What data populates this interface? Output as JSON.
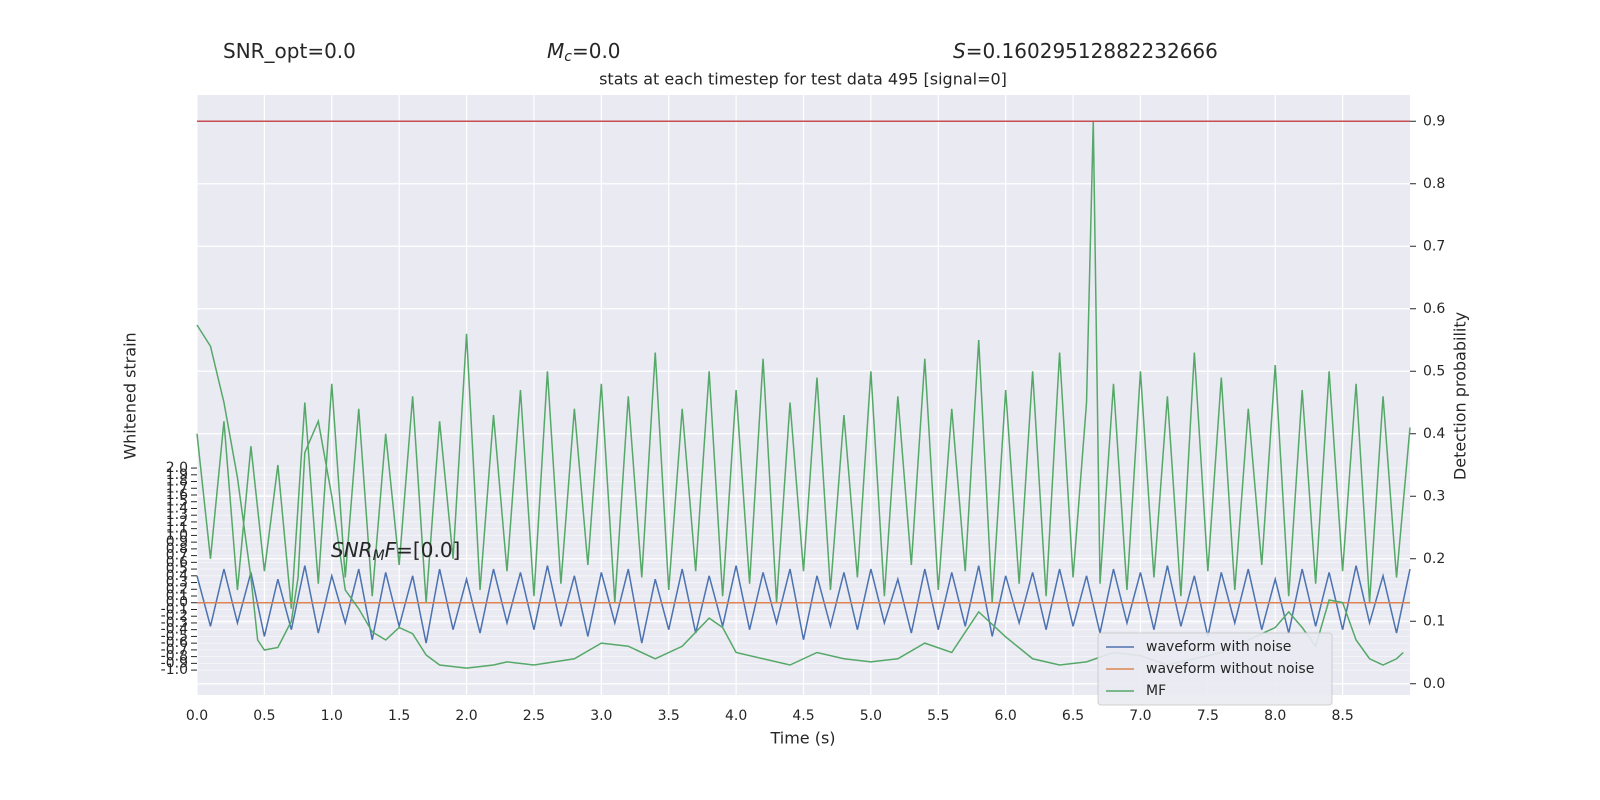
{
  "chart_data": {
    "type": "line",
    "title": "stats at each timestep for test data 495 [signal=0]",
    "annotations": [
      {
        "text": "SNR_opt=0.0"
      },
      {
        "symbol": "M",
        "subscript": "c",
        "text": "=0.0"
      },
      {
        "symbol": "S",
        "text": "=0.16029512882232666"
      },
      {
        "symbol": "SNR",
        "subscript": "M",
        "symbol2": "F",
        "text": "=[0.0]"
      }
    ],
    "x_label": "Time (s)",
    "y_label": "Whitened strain",
    "y2_label": "Detection probability",
    "xlim": [
      0,
      9.0
    ],
    "xticks": [
      {
        "value": 0,
        "label": "0.0"
      },
      0.5,
      {
        "value": 1,
        "label": "1.0"
      },
      1.5,
      {
        "value": 2,
        "label": "2.0"
      },
      2.5,
      {
        "value": 3,
        "label": "3.0"
      },
      3.5,
      {
        "value": 4,
        "label": "4.0"
      },
      4.5,
      {
        "value": 5,
        "label": "5.0"
      },
      5.5,
      {
        "value": 6,
        "label": "6.0"
      },
      6.5,
      {
        "value": 7,
        "label": "7.0"
      },
      7.5,
      {
        "value": 8,
        "label": "8.0"
      },
      8.5
    ],
    "ylim": [
      -1.37,
      7.54
    ],
    "yticks": [
      {
        "value": -1,
        "label": "-1.0"
      },
      -0.9,
      -0.8,
      -0.7,
      -0.6,
      -0.5,
      -0.4,
      -0.3,
      -0.2,
      -0.1,
      {
        "value": 0,
        "label": "0.0"
      },
      0.1,
      0.2,
      0.3,
      0.4,
      0.5,
      0.6,
      0.7,
      0.8,
      0.9,
      {
        "value": 1,
        "label": "1.0"
      },
      1.1,
      1.2,
      1.3,
      1.4,
      1.5,
      1.6,
      1.7,
      1.8,
      1.9,
      {
        "value": 2,
        "label": "2.0"
      }
    ],
    "y2lim": [
      -0.018,
      0.942
    ],
    "y2ticks": [
      {
        "value": 0,
        "label": "0.0"
      },
      0.1,
      0.2,
      0.3,
      0.4,
      0.5,
      0.6,
      0.7,
      0.8,
      0.9
    ],
    "threshold": 0.9,
    "threshold_color": "#c44e52",
    "grid": true,
    "legend": "lower right",
    "series": [
      {
        "color": "#55a868",
        "axis": "y2",
        "x": [
          0,
          0.1,
          0.2,
          0.3,
          0.4,
          0.5,
          0.6,
          0.7,
          0.8,
          0.9,
          1.0,
          1.1,
          1.2,
          1.3,
          1.4,
          1.5,
          1.6,
          1.7,
          1.8,
          1.9,
          2.0,
          2.1,
          2.2,
          2.3,
          2.4,
          2.5,
          2.6,
          2.7,
          2.8,
          2.9,
          3.0,
          3.1,
          3.2,
          3.3,
          3.4,
          3.5,
          3.6,
          3.7,
          3.8,
          3.9,
          4.0,
          4.1,
          4.2,
          4.3,
          4.4,
          4.5,
          4.6,
          4.7,
          4.8,
          4.9,
          5.0,
          5.1,
          5.2,
          5.3,
          5.4,
          5.5,
          5.6,
          5.7,
          5.8,
          5.9,
          6.0,
          6.1,
          6.2,
          6.3,
          6.4,
          6.5,
          6.6,
          6.65,
          6.7,
          6.8,
          6.9,
          7.0,
          7.1,
          7.2,
          7.3,
          7.4,
          7.5,
          7.6,
          7.7,
          7.8,
          7.9,
          8.0,
          8.1,
          8.2,
          8.3,
          8.4,
          8.5,
          8.6,
          8.7,
          8.8,
          8.9,
          9.0
        ],
        "values": [
          0.4,
          0.2,
          0.42,
          0.15,
          0.38,
          0.18,
          0.35,
          0.12,
          0.45,
          0.16,
          0.48,
          0.17,
          0.44,
          0.14,
          0.4,
          0.19,
          0.46,
          0.13,
          0.42,
          0.2,
          0.56,
          0.15,
          0.43,
          0.18,
          0.47,
          0.14,
          0.5,
          0.16,
          0.44,
          0.19,
          0.48,
          0.13,
          0.46,
          0.17,
          0.53,
          0.15,
          0.44,
          0.18,
          0.5,
          0.14,
          0.47,
          0.16,
          0.52,
          0.13,
          0.45,
          0.18,
          0.49,
          0.15,
          0.43,
          0.17,
          0.5,
          0.14,
          0.46,
          0.19,
          0.52,
          0.15,
          0.44,
          0.18,
          0.55,
          0.13,
          0.47,
          0.16,
          0.5,
          0.14,
          0.53,
          0.17,
          0.45,
          0.9,
          0.16,
          0.48,
          0.15,
          0.5,
          0.17,
          0.46,
          0.14,
          0.53,
          0.18,
          0.49,
          0.15,
          0.44,
          0.19,
          0.51,
          0.14,
          0.47,
          0.16,
          0.5,
          0.18,
          0.48,
          0.13,
          0.46,
          0.17,
          0.41
        ]
      },
      {
        "name": "waveform with noise",
        "color": "#4c72b0",
        "axis": "y",
        "x": [
          0,
          0.1,
          0.2,
          0.3,
          0.4,
          0.5,
          0.6,
          0.7,
          0.8,
          0.9,
          1.0,
          1.1,
          1.2,
          1.3,
          1.4,
          1.5,
          1.6,
          1.7,
          1.8,
          1.9,
          2.0,
          2.1,
          2.2,
          2.3,
          2.4,
          2.5,
          2.6,
          2.7,
          2.8,
          2.9,
          3.0,
          3.1,
          3.2,
          3.3,
          3.4,
          3.5,
          3.6,
          3.7,
          3.8,
          3.9,
          4.0,
          4.1,
          4.2,
          4.3,
          4.4,
          4.5,
          4.6,
          4.7,
          4.8,
          4.9,
          5.0,
          5.1,
          5.2,
          5.3,
          5.4,
          5.5,
          5.6,
          5.7,
          5.8,
          5.9,
          6.0,
          6.1,
          6.2,
          6.3,
          6.4,
          6.5,
          6.6,
          6.7,
          6.8,
          6.9,
          7.0,
          7.1,
          7.2,
          7.3,
          7.4,
          7.5,
          7.6,
          7.7,
          7.8,
          7.9,
          8.0,
          8.1,
          8.2,
          8.3,
          8.4,
          8.5,
          8.6,
          8.7,
          8.8,
          8.9,
          9.0
        ],
        "values": [
          0.4,
          -0.35,
          0.5,
          -0.3,
          0.45,
          -0.5,
          0.35,
          -0.4,
          0.55,
          -0.45,
          0.4,
          -0.3,
          0.5,
          -0.55,
          0.45,
          -0.35,
          0.4,
          -0.6,
          0.5,
          -0.4,
          0.35,
          -0.45,
          0.5,
          -0.3,
          0.45,
          -0.4,
          0.55,
          -0.35,
          0.4,
          -0.5,
          0.45,
          -0.3,
          0.5,
          -0.6,
          0.35,
          -0.4,
          0.5,
          -0.45,
          0.4,
          -0.35,
          0.55,
          -0.4,
          0.45,
          -0.3,
          0.5,
          -0.55,
          0.4,
          -0.35,
          0.45,
          -0.4,
          0.5,
          -0.3,
          0.35,
          -0.45,
          0.5,
          -0.4,
          0.45,
          -0.35,
          0.55,
          -0.5,
          0.4,
          -0.3,
          0.45,
          -0.4,
          0.5,
          -0.35,
          0.4,
          -0.45,
          0.5,
          -0.3,
          0.45,
          -0.4,
          0.55,
          -0.35,
          0.4,
          -0.5,
          0.45,
          -0.3,
          0.5,
          -0.4,
          0.35,
          -0.45,
          0.5,
          -0.35,
          0.45,
          -0.4,
          0.55,
          -0.3,
          0.4,
          -0.45,
          0.5
        ]
      },
      {
        "name": "waveform without noise",
        "color": "#dd8452",
        "axis": "y",
        "x": [
          0,
          9.0
        ],
        "values": [
          0,
          0
        ]
      },
      {
        "name": "MF",
        "color": "#55a868",
        "axis": "y2",
        "x": [
          0,
          0.1,
          0.2,
          0.3,
          0.4,
          0.45,
          0.5,
          0.6,
          0.7,
          0.75,
          0.8,
          0.9,
          1.0,
          1.1,
          1.2,
          1.3,
          1.4,
          1.5,
          1.6,
          1.7,
          1.8,
          2.0,
          2.2,
          2.3,
          2.5,
          2.8,
          3.0,
          3.2,
          3.4,
          3.6,
          3.8,
          3.9,
          4.0,
          4.2,
          4.4,
          4.6,
          4.8,
          5.0,
          5.2,
          5.4,
          5.6,
          5.8,
          6.0,
          6.2,
          6.4,
          6.6,
          6.8,
          7.0,
          7.2,
          7.4,
          7.6,
          7.8,
          8.0,
          8.1,
          8.2,
          8.3,
          8.4,
          8.5,
          8.6,
          8.7,
          8.8,
          8.9,
          8.95
        ],
        "values": [
          0.574,
          0.54,
          0.45,
          0.33,
          0.17,
          0.07,
          0.054,
          0.058,
          0.1,
          0.17,
          0.37,
          0.42,
          0.3,
          0.15,
          0.12,
          0.083,
          0.07,
          0.09,
          0.08,
          0.046,
          0.03,
          0.025,
          0.03,
          0.035,
          0.03,
          0.04,
          0.065,
          0.06,
          0.04,
          0.06,
          0.105,
          0.09,
          0.05,
          0.04,
          0.03,
          0.05,
          0.04,
          0.035,
          0.04,
          0.065,
          0.05,
          0.115,
          0.075,
          0.04,
          0.03,
          0.035,
          0.05,
          0.045,
          0.03,
          0.04,
          0.05,
          0.07,
          0.09,
          0.115,
          0.09,
          0.06,
          0.134,
          0.13,
          0.07,
          0.04,
          0.03,
          0.04,
          0.05
        ]
      }
    ]
  }
}
